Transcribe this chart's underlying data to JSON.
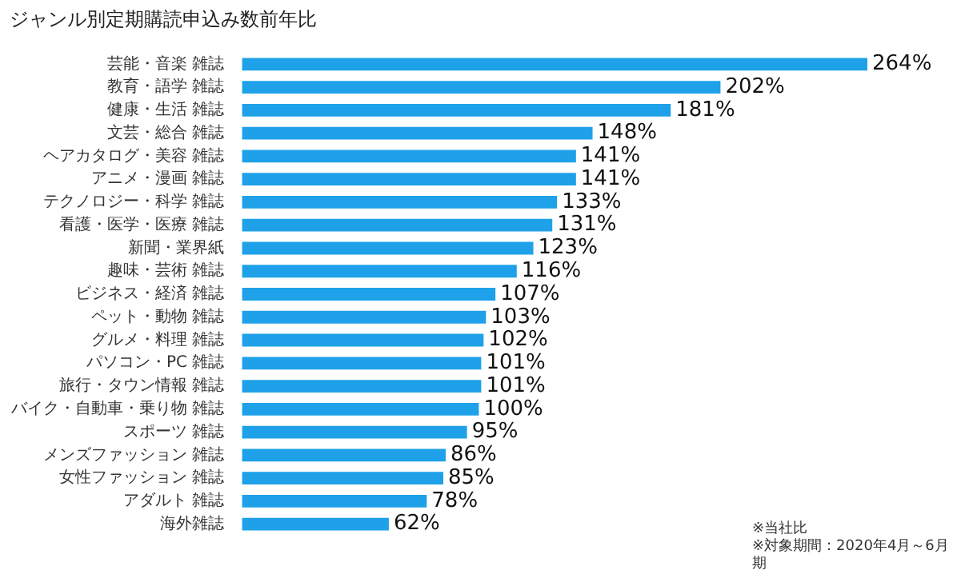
{
  "chart_data": {
    "type": "bar",
    "orientation": "horizontal",
    "title": "ジャンル別定期購読申込み数前年比",
    "categories": [
      "芸能・音楽 雑誌",
      "教育・語学 雑誌",
      "健康・生活 雑誌",
      "文芸・総合 雑誌",
      "ヘアカタログ・美容 雑誌",
      "アニメ・漫画 雑誌",
      "テクノロジー・科学 雑誌",
      "看護・医学・医療 雑誌",
      "新聞・業界紙",
      "趣味・芸術 雑誌",
      "ビジネス・経済 雑誌",
      "ペット・動物 雑誌",
      "グルメ・料理 雑誌",
      "パソコン・PC 雑誌",
      "旅行・タウン情報 雑誌",
      "バイク・自動車・乗り物 雑誌",
      "スポーツ 雑誌",
      "メンズファッション 雑誌",
      "女性ファッション 雑誌",
      "アダルト 雑誌",
      "海外雑誌"
    ],
    "values": [
      264,
      202,
      181,
      148,
      141,
      141,
      133,
      131,
      123,
      116,
      107,
      103,
      102,
      101,
      101,
      100,
      95,
      86,
      85,
      78,
      62
    ],
    "value_labels": [
      "264%",
      "202%",
      "181%",
      "148%",
      "141%",
      "141%",
      "133%",
      "131%",
      "123%",
      "116%",
      "107%",
      "103%",
      "102%",
      "101%",
      "101%",
      "100%",
      "95%",
      "86%",
      "85%",
      "78%",
      "62%"
    ],
    "color": "#1ea1e8",
    "annotations": [
      "※当社比",
      "※対象期間：2020年4月～6月期"
    ]
  }
}
